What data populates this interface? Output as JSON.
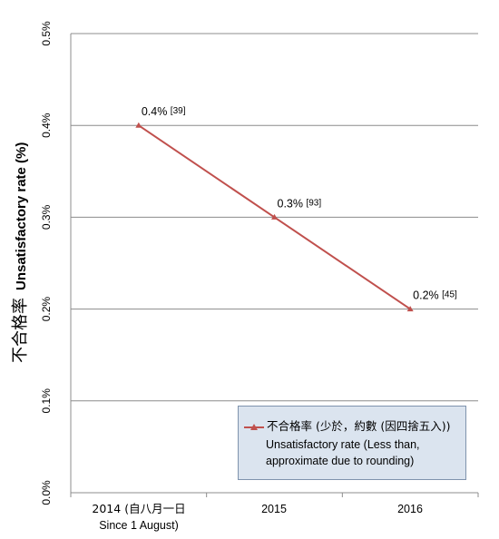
{
  "chart_data": {
    "type": "line",
    "ylabel_zh": "不合格率",
    "ylabel_en": "Unsatisfactory rate (%)",
    "yticks": [
      "0.0%",
      "0.1%",
      "0.2%",
      "0.3%",
      "0.4%",
      "0.5%"
    ],
    "ylim": [
      0,
      0.5
    ],
    "categories": [
      {
        "line1": "2014 (自八月一日",
        "line2": "Since 1 August)"
      },
      {
        "line1": "2015",
        "line2": ""
      },
      {
        "line1": "2016",
        "line2": ""
      }
    ],
    "series": [
      {
        "name_zh": "不合格率 (少於，約數 (因四捨五入))",
        "name_en": "Unsatisfactory rate (Less than, approximate due to rounding)",
        "color": "#c0504d",
        "values": [
          0.4,
          0.3,
          0.2
        ],
        "labels": [
          "0.4%",
          "0.3%",
          "0.2%"
        ],
        "counts": [
          "[39]",
          "[93]",
          "[45]"
        ]
      }
    ],
    "grid": true,
    "legend_position": "bottom-right"
  }
}
